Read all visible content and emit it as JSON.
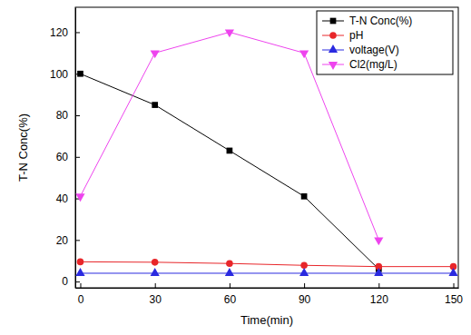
{
  "chart_data": {
    "type": "line",
    "x_label": "Time(min)",
    "y_label": "T-N Conc(%)",
    "x": [
      0,
      30,
      60,
      90,
      120,
      150
    ],
    "series": [
      {
        "name": "T-N Conc(%)",
        "color": "#000000",
        "marker": "square",
        "values": [
          100,
          85,
          63,
          41,
          6,
          null
        ]
      },
      {
        "name": "pH",
        "color": "#e8262a",
        "marker": "circle",
        "values": [
          9.5,
          9.3,
          8.7,
          7.8,
          7.2,
          7.2
        ]
      },
      {
        "name": "voltage(V)",
        "color": "#2a2ae0",
        "marker": "triangle-up",
        "values": [
          4,
          4,
          4,
          4,
          4,
          4
        ]
      },
      {
        "name": "Cl2(mg/L)",
        "color": "#ee44ee",
        "marker": "triangle-down",
        "values": [
          41,
          110,
          120,
          110,
          20,
          null
        ]
      }
    ],
    "xlim": [
      -2,
      152
    ],
    "ylim": [
      -3,
      132
    ],
    "xticks": [
      0,
      30,
      60,
      90,
      120,
      150
    ],
    "yticks": [
      0,
      20,
      40,
      60,
      80,
      100,
      120
    ],
    "grid": false,
    "legend": "top-right"
  }
}
